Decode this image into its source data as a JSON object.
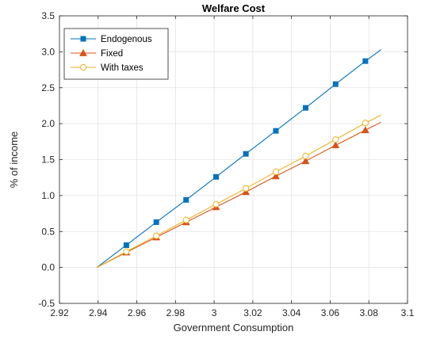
{
  "chart_data": {
    "type": "line",
    "title": "Welfare Cost",
    "xlabel": "Government Consumption",
    "ylabel": "% of income",
    "xlim": [
      2.92,
      3.1
    ],
    "ylim": [
      -0.5,
      3.5
    ],
    "xticks": [
      2.92,
      2.94,
      2.96,
      2.98,
      3.0,
      3.02,
      3.04,
      3.06,
      3.08,
      3.1
    ],
    "xtick_labels": [
      "2.92",
      "2.94",
      "2.96",
      "2.98",
      "3",
      "3.02",
      "3.04",
      "3.06",
      "3.08",
      "3.1"
    ],
    "yticks": [
      -0.5,
      0,
      0.5,
      1.0,
      1.5,
      2.0,
      2.5,
      3.0,
      3.5
    ],
    "ytick_labels": [
      "-0.5",
      "0.0",
      "0.5",
      "1.0",
      "1.5",
      "2.0",
      "2.5",
      "3.0",
      "3.5"
    ],
    "grid": true,
    "legend_position": "top-left",
    "series": [
      {
        "name": "Endogenous",
        "color": "#0072BD",
        "marker": "square",
        "x": [
          2.9393,
          2.9546,
          2.9701,
          2.9855,
          3.001,
          3.0164,
          3.0319,
          3.0473,
          3.0628,
          3.0782,
          3.0863
        ],
        "y": [
          0.0,
          0.31,
          0.63,
          0.94,
          1.26,
          1.58,
          1.9,
          2.22,
          2.55,
          2.87,
          3.03
        ],
        "marker_x": [
          2.9546,
          2.9701,
          2.9855,
          3.001,
          3.0164,
          3.0319,
          3.0473,
          3.0628,
          3.0782
        ],
        "marker_y": [
          0.31,
          0.63,
          0.94,
          1.26,
          1.58,
          1.9,
          2.22,
          2.55,
          2.87
        ]
      },
      {
        "name": "Fixed",
        "color": "#D95319",
        "marker": "triangle",
        "x": [
          2.9393,
          2.9546,
          2.9701,
          2.9855,
          3.001,
          3.0164,
          3.0319,
          3.0473,
          3.0628,
          3.0782,
          3.0863
        ],
        "y": [
          0.0,
          0.21,
          0.42,
          0.63,
          0.84,
          1.05,
          1.27,
          1.48,
          1.7,
          1.91,
          2.02
        ],
        "marker_x": [
          2.9546,
          2.9701,
          2.9855,
          3.001,
          3.0164,
          3.0319,
          3.0473,
          3.0628,
          3.0782
        ],
        "marker_y": [
          0.21,
          0.42,
          0.63,
          0.84,
          1.05,
          1.27,
          1.48,
          1.7,
          1.91
        ]
      },
      {
        "name": "With taxes",
        "color": "#EDB120",
        "marker": "circle",
        "x": [
          2.9393,
          2.9546,
          2.9701,
          2.9855,
          3.001,
          3.0164,
          3.0319,
          3.0473,
          3.0628,
          3.0782,
          3.0863
        ],
        "y": [
          0.0,
          0.22,
          0.44,
          0.66,
          0.88,
          1.1,
          1.33,
          1.55,
          1.78,
          2.01,
          2.12
        ],
        "marker_x": [
          2.9546,
          2.9701,
          2.9855,
          3.001,
          3.0164,
          3.0319,
          3.0473,
          3.0628,
          3.0782
        ],
        "marker_y": [
          0.22,
          0.44,
          0.66,
          0.88,
          1.1,
          1.33,
          1.55,
          1.78,
          2.01
        ]
      }
    ]
  }
}
